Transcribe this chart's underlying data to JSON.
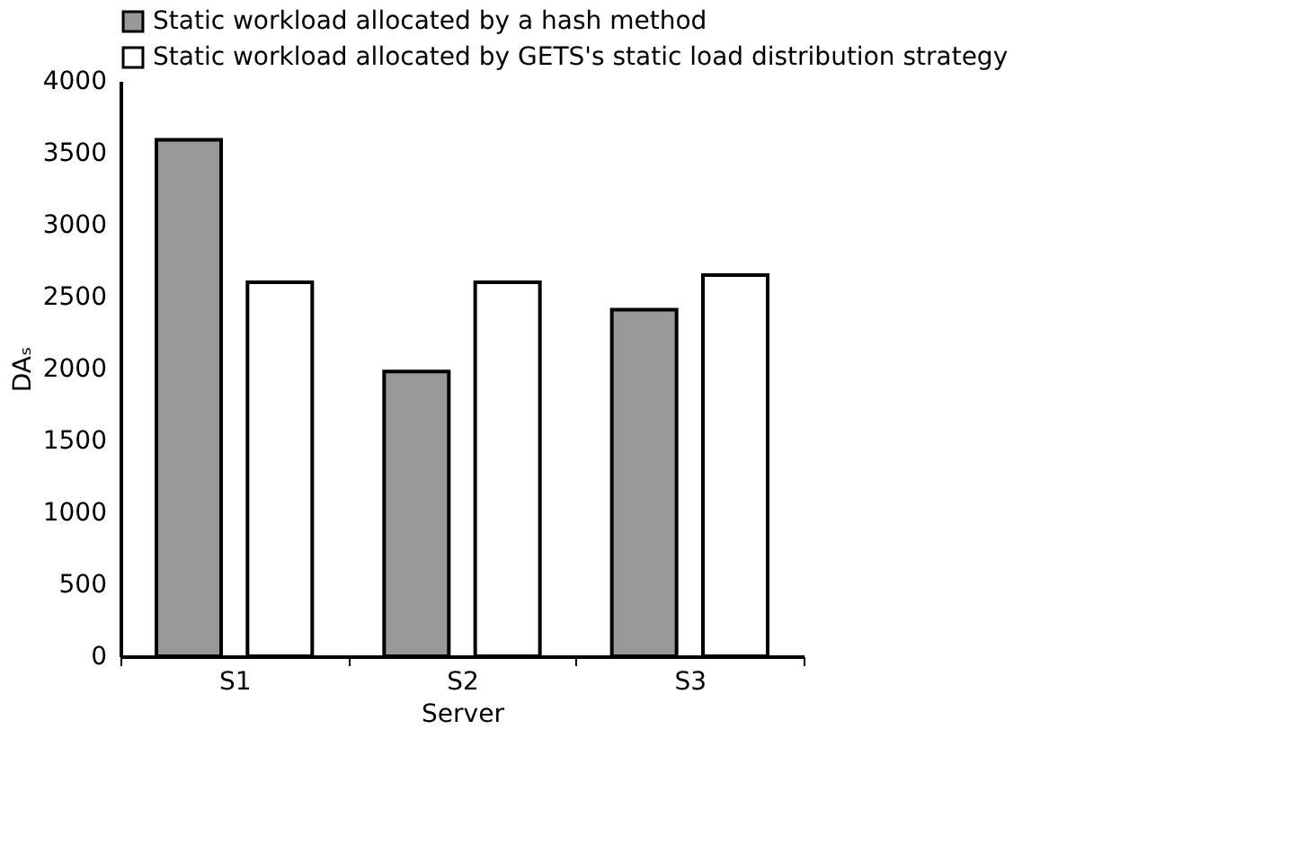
{
  "chart_data": {
    "type": "bar",
    "xlabel": "Server",
    "ylabel": "DAₛ",
    "categories": [
      "S1",
      "S2",
      "S3"
    ],
    "series": [
      {
        "name": "Static workload allocated by a hash method",
        "color": "#999999",
        "values": [
          3590,
          1980,
          2410
        ]
      },
      {
        "name": "Static workload allocated by GETS's static load distribution strategy",
        "color": "#ffffff",
        "values": [
          2600,
          2600,
          2650
        ]
      }
    ],
    "ylim": [
      0,
      4000
    ],
    "yticks": [
      0,
      500,
      1000,
      1500,
      2000,
      2500,
      3000,
      3500,
      4000
    ],
    "grid": false,
    "legend": "top right"
  }
}
